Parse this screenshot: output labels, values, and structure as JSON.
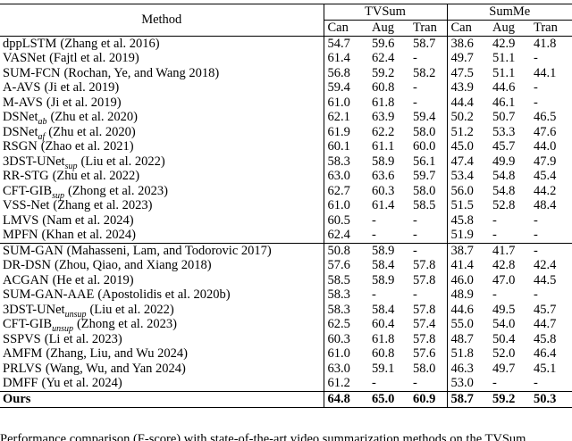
{
  "table": {
    "header": {
      "method": "Method",
      "groups": [
        "TVSum",
        "SumMe"
      ],
      "subcols": [
        "Can",
        "Aug",
        "Tran",
        "Can",
        "Aug",
        "Tran"
      ]
    },
    "sections": [
      {
        "bold": false,
        "rows": [
          {
            "method": {
              "name": "dppLSTM",
              "cite": "(Zhang et al. 2016)"
            },
            "values": [
              "54.7",
              "59.6",
              "58.7",
              "38.6",
              "42.9",
              "41.8"
            ]
          },
          {
            "method": {
              "name": "VASNet",
              "cite": "(Fajtl et al. 2019)"
            },
            "values": [
              "61.4",
              "62.4",
              "-",
              "49.7",
              "51.1",
              "-"
            ]
          },
          {
            "method": {
              "name": "SUM-FCN",
              "cite": "(Rochan, Ye, and Wang 2018)"
            },
            "values": [
              "56.8",
              "59.2",
              "58.2",
              "47.5",
              "51.1",
              "44.1"
            ]
          },
          {
            "method": {
              "name": "A-AVS",
              "cite": "(Ji et al. 2019)"
            },
            "values": [
              "59.4",
              "60.8",
              "-",
              "43.9",
              "44.6",
              "-"
            ]
          },
          {
            "method": {
              "name": "M-AVS",
              "cite": "(Ji et al. 2019)"
            },
            "values": [
              "61.0",
              "61.8",
              "-",
              "44.4",
              "46.1",
              "-"
            ]
          },
          {
            "method": {
              "name": "DSNet",
              "sub": "ab",
              "cite": "(Zhu et al. 2020)"
            },
            "values": [
              "62.1",
              "63.9",
              "59.4",
              "50.2",
              "50.7",
              "46.5"
            ]
          },
          {
            "method": {
              "name": "DSNet",
              "sub": "af",
              "cite": "(Zhu et al. 2020)"
            },
            "values": [
              "61.9",
              "62.2",
              "58.0",
              "51.2",
              "53.3",
              "47.6"
            ]
          },
          {
            "method": {
              "name": "RSGN",
              "cite": "(Zhao et al. 2021)"
            },
            "values": [
              "60.1",
              "61.1",
              "60.0",
              "45.0",
              "45.7",
              "44.0"
            ]
          },
          {
            "method": {
              "name": "3DST-UNet",
              "sub": "sup",
              "cite": "(Liu et al. 2022)"
            },
            "values": [
              "58.3",
              "58.9",
              "56.1",
              "47.4",
              "49.9",
              "47.9"
            ]
          },
          {
            "method": {
              "name": "RR-STG",
              "cite": "(Zhu et al. 2022)"
            },
            "values": [
              "63.0",
              "63.6",
              "59.7",
              "53.4",
              "54.8",
              "45.4"
            ]
          },
          {
            "method": {
              "name": "CFT-GIB",
              "sub": "sup",
              "cite": "(Zhong et al. 2023)"
            },
            "values": [
              "62.7",
              "60.3",
              "58.0",
              "56.0",
              "54.8",
              "44.2"
            ]
          },
          {
            "method": {
              "name": "VSS-Net",
              "cite": "(Zhang et al. 2023)"
            },
            "values": [
              "61.0",
              "61.4",
              "58.5",
              "51.5",
              "52.8",
              "48.4"
            ]
          },
          {
            "method": {
              "name": "LMVS",
              "cite": "(Nam et al. 2024)"
            },
            "values": [
              "60.5",
              "-",
              "-",
              "45.8",
              "-",
              "-"
            ]
          },
          {
            "method": {
              "name": "MPFN",
              "cite": "(Khan et al. 2024)"
            },
            "values": [
              "62.4",
              "-",
              "-",
              "51.9",
              "-",
              "-"
            ]
          }
        ]
      },
      {
        "bold": false,
        "rows": [
          {
            "method": {
              "name": "SUM-GAN",
              "cite": "(Mahasseni, Lam, and Todorovic 2017)"
            },
            "values": [
              "50.8",
              "58.9",
              "-",
              "38.7",
              "41.7",
              "-"
            ]
          },
          {
            "method": {
              "name": "DR-DSN",
              "cite": "(Zhou, Qiao, and Xiang 2018)"
            },
            "values": [
              "57.6",
              "58.4",
              "57.8",
              "41.4",
              "42.8",
              "42.4"
            ]
          },
          {
            "method": {
              "name": "ACGAN",
              "cite": "(He et al. 2019)"
            },
            "values": [
              "58.5",
              "58.9",
              "57.8",
              "46.0",
              "47.0",
              "44.5"
            ]
          },
          {
            "method": {
              "name": "SUM-GAN-AAE",
              "cite": "(Apostolidis et al. 2020b)"
            },
            "values": [
              "58.3",
              "-",
              "-",
              "48.9",
              "-",
              "-"
            ]
          },
          {
            "method": {
              "name": "3DST-UNet",
              "sub": "unsup",
              "cite": "(Liu et al. 2022)"
            },
            "values": [
              "58.3",
              "58.4",
              "57.8",
              "44.6",
              "49.5",
              "45.7"
            ]
          },
          {
            "method": {
              "name": "CFT-GIB",
              "sub": "unsup",
              "cite": "(Zhong et al. 2023)"
            },
            "values": [
              "62.5",
              "60.4",
              "57.4",
              "55.0",
              "54.0",
              "44.7"
            ]
          },
          {
            "method": {
              "name": "SSPVS",
              "cite": "(Li et al. 2023)"
            },
            "values": [
              "60.3",
              "61.8",
              "57.8",
              "48.7",
              "50.4",
              "45.8"
            ]
          },
          {
            "method": {
              "name": "AMFM",
              "cite": "(Zhang, Liu, and Wu 2024)"
            },
            "values": [
              "61.0",
              "60.8",
              "57.6",
              "51.8",
              "52.0",
              "46.4"
            ]
          },
          {
            "method": {
              "name": "PRLVS",
              "cite": "(Wang, Wu, and Yan 2024)"
            },
            "values": [
              "63.0",
              "59.1",
              "58.0",
              "46.3",
              "49.7",
              "45.1"
            ]
          },
          {
            "method": {
              "name": "DMFF",
              "cite": "(Yu et al. 2024)"
            },
            "values": [
              "61.2",
              "-",
              "-",
              "53.0",
              "-",
              "-"
            ]
          }
        ]
      },
      {
        "bold": true,
        "rows": [
          {
            "method": {
              "name": "Ours"
            },
            "values": [
              "64.8",
              "65.0",
              "60.9",
              "58.7",
              "59.2",
              "50.3"
            ]
          }
        ]
      }
    ]
  },
  "caption": "Performance comparison (F-score) with state-of-the-art video summarization methods on the TVSum"
}
